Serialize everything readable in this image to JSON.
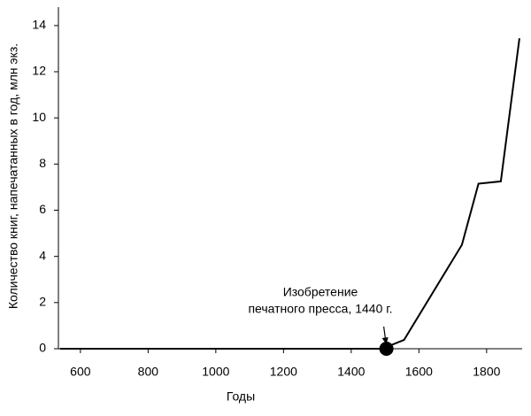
{
  "chart_data": {
    "type": "line",
    "x_label": "Годы",
    "y_label": "Количество книг, напечатанных в год, млн экз.",
    "x": [
      540,
      1491,
      1556,
      1727,
      1776,
      1842,
      1897
    ],
    "series": [
      {
        "color": "#000000",
        "values": [
          0,
          0,
          0.38,
          4.5,
          7.15,
          7.25,
          13.45
        ]
      }
    ],
    "xlim": [
      535,
      1905
    ],
    "xticks": [
      600,
      800,
      1000,
      1200,
      1400,
      1600,
      1800
    ],
    "ylim": [
      0,
      14.8
    ],
    "yticks": [
      0,
      2,
      4,
      6,
      8,
      10,
      12,
      14
    ],
    "grid": false,
    "annotation": {
      "lines": [
        "Изобретение",
        "печатного пресса, 1440 г."
      ],
      "x": 1504,
      "y": 0
    }
  }
}
